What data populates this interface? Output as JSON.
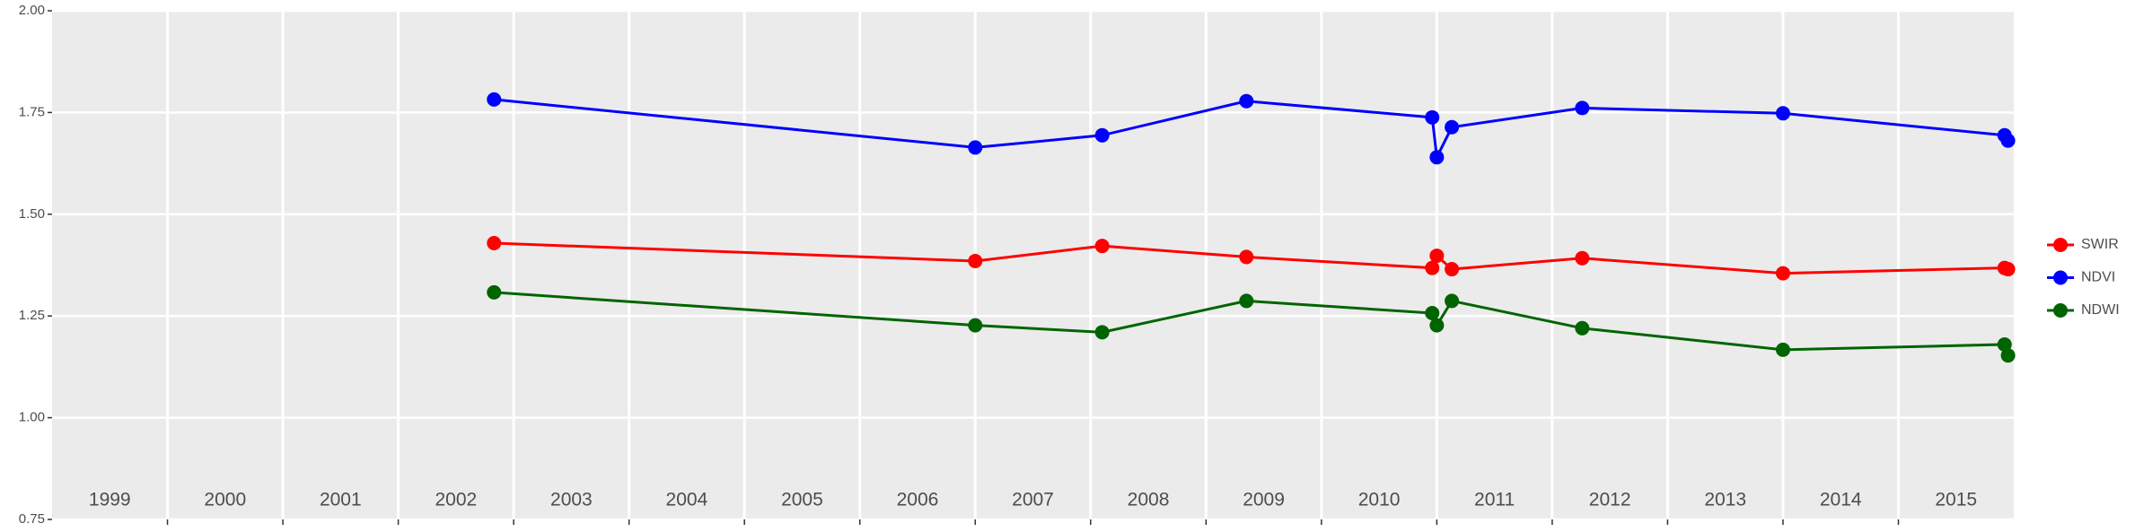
{
  "chart_data": {
    "type": "line",
    "x": [
      2002.83,
      2007.0,
      2008.1,
      2009.35,
      2010.96,
      2011.0,
      2011.13,
      2012.26,
      2014.0,
      2015.92,
      2015.95
    ],
    "series": [
      {
        "name": "SWIR",
        "color": "#ff0000",
        "values": [
          1.429,
          1.385,
          1.422,
          1.395,
          1.368,
          1.398,
          1.365,
          1.392,
          1.355,
          1.368,
          1.365
        ]
      },
      {
        "name": "NDVI",
        "color": "#0000ff",
        "values": [
          1.782,
          1.664,
          1.694,
          1.778,
          1.738,
          1.64,
          1.714,
          1.761,
          1.748,
          1.694,
          1.681
        ]
      },
      {
        "name": "NDWI",
        "color": "#006400",
        "values": [
          1.308,
          1.227,
          1.21,
          1.287,
          1.257,
          1.227,
          1.287,
          1.22,
          1.167,
          1.18,
          1.153
        ]
      }
    ],
    "xlim": [
      1999,
      2016
    ],
    "xticks": [
      2000,
      2001,
      2002,
      2003,
      2004,
      2005,
      2006,
      2007,
      2008,
      2009,
      2010,
      2011,
      2012,
      2013,
      2014,
      2015
    ],
    "categories": [
      "1999",
      "2000",
      "2001",
      "2002",
      "2003",
      "2004",
      "2005",
      "2006",
      "2007",
      "2008",
      "2009",
      "2010",
      "2011",
      "2012",
      "2013",
      "2014",
      "2015"
    ],
    "ylim": [
      0.75,
      2
    ],
    "yticks": [
      0.75,
      {
        "value": 1,
        "label": "1.00"
      },
      1.25,
      {
        "value": 1.5,
        "label": "1.50"
      },
      1.75,
      {
        "value": 2,
        "label": "2.00"
      }
    ],
    "grid": true,
    "legend": "right"
  }
}
